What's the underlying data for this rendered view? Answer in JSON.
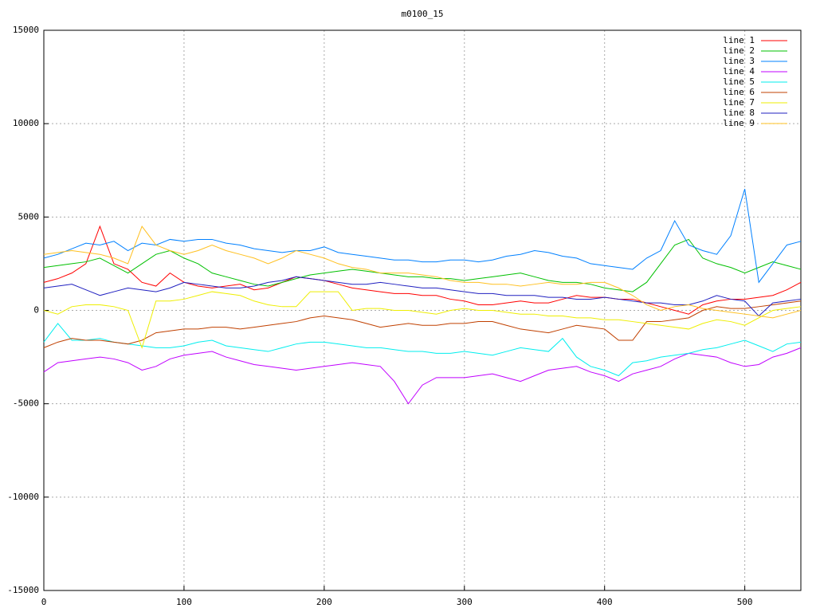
{
  "chart_data": {
    "type": "line",
    "title": "m0100_15",
    "x": [
      0,
      10,
      20,
      30,
      40,
      50,
      60,
      70,
      80,
      90,
      100,
      110,
      120,
      130,
      140,
      150,
      160,
      170,
      180,
      190,
      200,
      210,
      220,
      230,
      240,
      250,
      260,
      270,
      280,
      290,
      300,
      310,
      320,
      330,
      340,
      350,
      360,
      370,
      380,
      390,
      400,
      410,
      420,
      430,
      440,
      450,
      460,
      470,
      480,
      490,
      500,
      510,
      520,
      530,
      540
    ],
    "xlim": [
      0,
      540
    ],
    "xticks": [
      0,
      100,
      200,
      300,
      400,
      500
    ],
    "ylim": [
      -15000,
      15000
    ],
    "yticks": [
      -15000,
      -10000,
      -5000,
      0,
      5000,
      10000,
      15000
    ],
    "grid": true,
    "legend": "top-right",
    "series": [
      {
        "name": "line 1",
        "color": "#ff0000",
        "values": [
          1500,
          1700,
          2000,
          2500,
          4500,
          2500,
          2200,
          1500,
          1300,
          2000,
          1500,
          1300,
          1200,
          1300,
          1400,
          1100,
          1200,
          1500,
          1800,
          1700,
          1600,
          1400,
          1200,
          1100,
          1000,
          900,
          900,
          800,
          800,
          600,
          500,
          300,
          300,
          400,
          500,
          400,
          400,
          600,
          800,
          700,
          700,
          600,
          600,
          400,
          200,
          0,
          -200,
          300,
          500,
          600,
          600,
          700,
          800,
          1100,
          1500
        ]
      },
      {
        "name": "line 2",
        "color": "#00c000",
        "values": [
          2300,
          2400,
          2500,
          2600,
          2800,
          2400,
          2000,
          2500,
          3000,
          3200,
          2800,
          2500,
          2000,
          1800,
          1600,
          1400,
          1300,
          1500,
          1700,
          1900,
          2000,
          2100,
          2200,
          2100,
          2000,
          1900,
          1800,
          1800,
          1700,
          1700,
          1600,
          1700,
          1800,
          1900,
          2000,
          1800,
          1600,
          1500,
          1500,
          1400,
          1200,
          1100,
          1000,
          1500,
          2500,
          3500,
          3800,
          2800,
          2500,
          2300,
          2000,
          2300,
          2600,
          2400,
          2200
        ]
      },
      {
        "name": "line 3",
        "color": "#0080ff",
        "values": [
          2800,
          3000,
          3300,
          3600,
          3500,
          3700,
          3200,
          3600,
          3500,
          3800,
          3700,
          3800,
          3800,
          3600,
          3500,
          3300,
          3200,
          3100,
          3200,
          3200,
          3400,
          3100,
          3000,
          2900,
          2800,
          2700,
          2700,
          2600,
          2600,
          2700,
          2700,
          2600,
          2700,
          2900,
          3000,
          3200,
          3100,
          2900,
          2800,
          2500,
          2400,
          2300,
          2200,
          2800,
          3200,
          4800,
          3500,
          3200,
          3000,
          4000,
          6500,
          1500,
          2500,
          3500,
          3700
        ]
      },
      {
        "name": "line 4",
        "color": "#c000ff",
        "values": [
          -3300,
          -2800,
          -2700,
          -2600,
          -2500,
          -2600,
          -2800,
          -3200,
          -3000,
          -2600,
          -2400,
          -2300,
          -2200,
          -2500,
          -2700,
          -2900,
          -3000,
          -3100,
          -3200,
          -3100,
          -3000,
          -2900,
          -2800,
          -2900,
          -3000,
          -3800,
          -5000,
          -4000,
          -3600,
          -3600,
          -3600,
          -3500,
          -3400,
          -3600,
          -3800,
          -3500,
          -3200,
          -3100,
          -3000,
          -3300,
          -3500,
          -3800,
          -3400,
          -3200,
          -3000,
          -2600,
          -2300,
          -2400,
          -2500,
          -2800,
          -3000,
          -2900,
          -2500,
          -2300,
          -2000
        ]
      },
      {
        "name": "line 5",
        "color": "#00eeee",
        "values": [
          -1700,
          -700,
          -1600,
          -1600,
          -1500,
          -1700,
          -1800,
          -1900,
          -2000,
          -2000,
          -1900,
          -1700,
          -1600,
          -1900,
          -2000,
          -2100,
          -2200,
          -2000,
          -1800,
          -1700,
          -1700,
          -1800,
          -1900,
          -2000,
          -2000,
          -2100,
          -2200,
          -2200,
          -2300,
          -2300,
          -2200,
          -2300,
          -2400,
          -2200,
          -2000,
          -2100,
          -2200,
          -1500,
          -2500,
          -3000,
          -3200,
          -3500,
          -2800,
          -2700,
          -2500,
          -2400,
          -2300,
          -2100,
          -2000,
          -1800,
          -1600,
          -1900,
          -2200,
          -1800,
          -1700
        ]
      },
      {
        "name": "line 6",
        "color": "#c04000",
        "values": [
          -2000,
          -1700,
          -1500,
          -1600,
          -1600,
          -1700,
          -1800,
          -1600,
          -1200,
          -1100,
          -1000,
          -1000,
          -900,
          -900,
          -1000,
          -900,
          -800,
          -700,
          -600,
          -400,
          -300,
          -400,
          -500,
          -700,
          -900,
          -800,
          -700,
          -800,
          -800,
          -700,
          -700,
          -600,
          -600,
          -800,
          -1000,
          -1100,
          -1200,
          -1000,
          -800,
          -900,
          -1000,
          -1600,
          -1600,
          -600,
          -600,
          -500,
          -400,
          0,
          200,
          100,
          100,
          200,
          300,
          400,
          500
        ]
      },
      {
        "name": "line 7",
        "color": "#eeee00",
        "values": [
          0,
          -200,
          200,
          300,
          300,
          200,
          0,
          -2000,
          500,
          500,
          600,
          800,
          1000,
          900,
          800,
          500,
          300,
          200,
          200,
          1000,
          1000,
          1000,
          0,
          100,
          100,
          0,
          0,
          -100,
          -200,
          0,
          100,
          0,
          0,
          -100,
          -200,
          -200,
          -300,
          -300,
          -400,
          -400,
          -500,
          -500,
          -600,
          -700,
          -800,
          -900,
          -1000,
          -700,
          -500,
          -600,
          -800,
          -400,
          0,
          100,
          200
        ]
      },
      {
        "name": "line 8",
        "color": "#2020c0",
        "values": [
          1200,
          1300,
          1400,
          1100,
          800,
          1000,
          1200,
          1100,
          1000,
          1200,
          1500,
          1400,
          1300,
          1200,
          1200,
          1300,
          1500,
          1600,
          1800,
          1700,
          1600,
          1500,
          1400,
          1400,
          1500,
          1400,
          1300,
          1200,
          1200,
          1100,
          1000,
          900,
          900,
          800,
          800,
          800,
          700,
          700,
          600,
          600,
          700,
          600,
          500,
          400,
          400,
          300,
          300,
          500,
          800,
          600,
          500,
          -300,
          400,
          500,
          600
        ]
      },
      {
        "name": "line 9",
        "color": "#ffc020",
        "values": [
          3000,
          3100,
          3200,
          3100,
          3000,
          2800,
          2500,
          4500,
          3500,
          3200,
          3000,
          3200,
          3500,
          3200,
          3000,
          2800,
          2500,
          2800,
          3200,
          3000,
          2800,
          2500,
          2300,
          2200,
          2000,
          2000,
          2000,
          1900,
          1800,
          1600,
          1500,
          1500,
          1400,
          1400,
          1300,
          1400,
          1500,
          1400,
          1400,
          1500,
          1500,
          1200,
          800,
          300,
          0,
          200,
          300,
          100,
          0,
          -100,
          -200,
          -300,
          -400,
          -200,
          0
        ]
      }
    ]
  }
}
